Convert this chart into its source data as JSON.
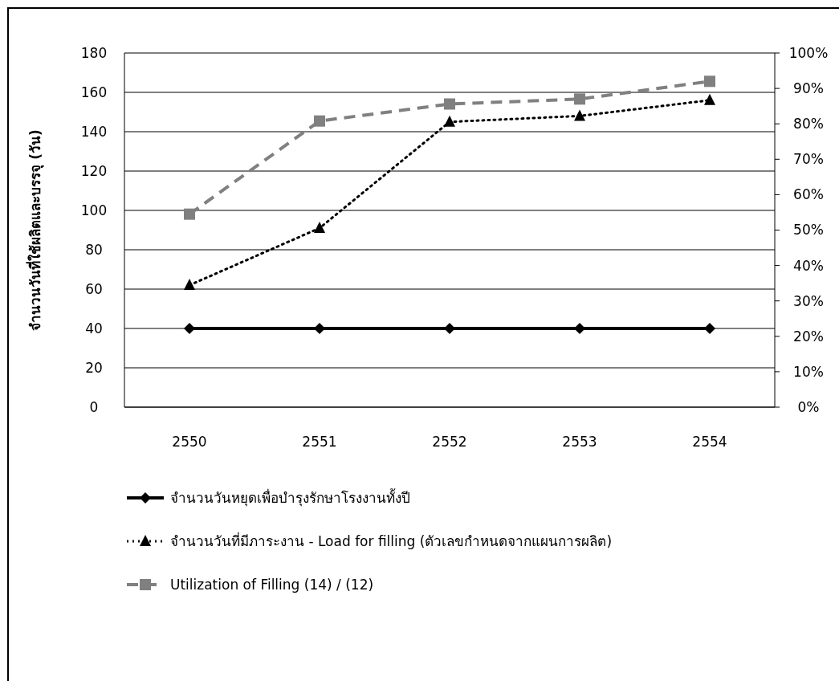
{
  "chart_data": {
    "type": "line",
    "ylabel": "จำนวนวันที่ใช้ผลิตและบรรจุ (วัน)",
    "categories": [
      "2550",
      "2551",
      "2552",
      "2553",
      "2554"
    ],
    "series": [
      {
        "name": "จำนวนวันหยุดเพื่อบำรุงรักษาโรงงานทั้งปี",
        "color": "#000000",
        "marker": "diamond",
        "line_style": "solid",
        "values": [
          40,
          40,
          40,
          40,
          40
        ]
      },
      {
        "name": "จำนวนวันที่มีภาระงาน - Load for filling (ตัวเลขกำหนดจากแผนการผลิต)",
        "color": "#000000",
        "marker": "triangle",
        "line_style": "dotted",
        "values": [
          62,
          91,
          145,
          148,
          156
        ]
      },
      {
        "name": "Utilization of Filling (14) / (12)",
        "color": "#808080",
        "marker": "square",
        "line_style": "dashed",
        "axis": "y2",
        "values": [
          54.5,
          80.8,
          85.6,
          87,
          92
        ]
      }
    ],
    "ylim": [
      0,
      180
    ],
    "yticks": [
      0,
      20,
      40,
      60,
      80,
      100,
      120,
      140,
      160,
      180
    ],
    "y2lim": [
      0,
      100
    ],
    "y2ticks": [
      {
        "value": 0,
        "label": "0%"
      },
      {
        "value": 10,
        "label": "10%"
      },
      {
        "value": 20,
        "label": "20%"
      },
      {
        "value": 30,
        "label": "30%"
      },
      {
        "value": 40,
        "label": "40%"
      },
      {
        "value": 50,
        "label": "50%"
      },
      {
        "value": 60,
        "label": "60%"
      },
      {
        "value": 70,
        "label": "70%"
      },
      {
        "value": 80,
        "label": "80%"
      },
      {
        "value": 90,
        "label": "90%"
      },
      {
        "value": 100,
        "label": "100%"
      }
    ],
    "grid": "y",
    "legend": "bottom"
  }
}
